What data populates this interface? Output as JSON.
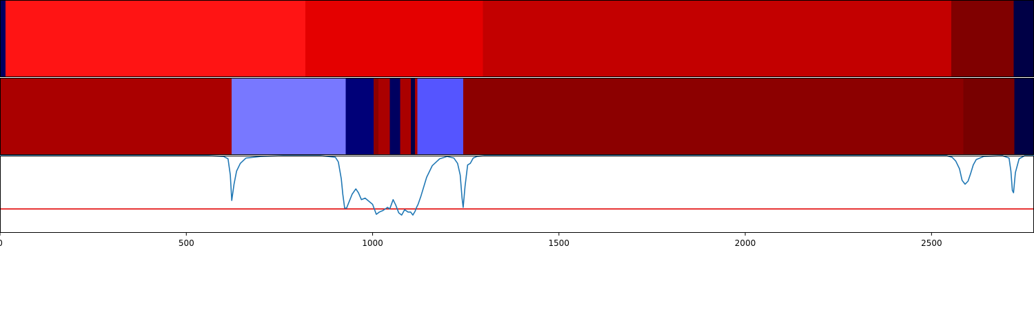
{
  "chart_data": {
    "type": "heatmap",
    "xlim": [
      0,
      2775
    ],
    "x_ticks": [
      {
        "value": 0,
        "label": "0"
      },
      {
        "value": 500,
        "label": "500"
      },
      {
        "value": 1000,
        "label": "1000"
      },
      {
        "value": 1500,
        "label": "1500"
      },
      {
        "value": 2000,
        "label": "2000"
      },
      {
        "value": 2500,
        "label": "2500"
      }
    ],
    "tracks": [
      {
        "name": "",
        "segments": [
          {
            "start": 0,
            "end": 15,
            "color": "#000060"
          },
          {
            "start": 15,
            "end": 820,
            "color": "#ff1414"
          },
          {
            "start": 820,
            "end": 1296,
            "color": "#e40000"
          },
          {
            "start": 1296,
            "end": 2553,
            "color": "#c30000"
          },
          {
            "start": 2553,
            "end": 2720,
            "color": "#800000"
          },
          {
            "start": 2720,
            "end": 2775,
            "color": "#000046"
          }
        ]
      },
      {
        "name": "",
        "segments": [
          {
            "start": 0,
            "end": 622,
            "color": "#aa0000"
          },
          {
            "start": 622,
            "end": 928,
            "color": "#7878ff"
          },
          {
            "start": 928,
            "end": 1003,
            "color": "#000078"
          },
          {
            "start": 1003,
            "end": 1016,
            "color": "#8c0000"
          },
          {
            "start": 1016,
            "end": 1046,
            "color": "#aa0000"
          },
          {
            "start": 1046,
            "end": 1074,
            "color": "#000060"
          },
          {
            "start": 1074,
            "end": 1103,
            "color": "#aa0000"
          },
          {
            "start": 1103,
            "end": 1114,
            "color": "#000046"
          },
          {
            "start": 1114,
            "end": 1120,
            "color": "#aa0000"
          },
          {
            "start": 1120,
            "end": 1243,
            "color": "#5555ff"
          },
          {
            "start": 1243,
            "end": 2585,
            "color": "#8c0000"
          },
          {
            "start": 2585,
            "end": 2722,
            "color": "#780000"
          },
          {
            "start": 2722,
            "end": 2775,
            "color": "#000046"
          }
        ]
      }
    ],
    "line_panel": {
      "ylim": [
        0,
        1
      ],
      "threshold": 0.31,
      "threshold_color": "#e00000",
      "line_color": "#1f77b4",
      "x": [
        0,
        560,
        600,
        612,
        618,
        622,
        628,
        635,
        645,
        660,
        700,
        760,
        820,
        860,
        900,
        908,
        916,
        920,
        925,
        930,
        945,
        955,
        962,
        970,
        980,
        1000,
        1010,
        1018,
        1028,
        1040,
        1046,
        1055,
        1062,
        1070,
        1078,
        1086,
        1095,
        1102,
        1108,
        1114,
        1118,
        1122,
        1130,
        1145,
        1160,
        1180,
        1200,
        1218,
        1228,
        1235,
        1240,
        1243,
        1248,
        1255,
        1262,
        1270,
        1280,
        1300,
        1400,
        1800,
        2300,
        2540,
        2555,
        2565,
        2575,
        2582,
        2590,
        2598,
        2605,
        2612,
        2620,
        2640,
        2690,
        2708,
        2713,
        2717,
        2720,
        2725,
        2735,
        2750,
        2775
      ],
      "y": [
        1.0,
        1.0,
        0.99,
        0.96,
        0.75,
        0.42,
        0.63,
        0.8,
        0.9,
        0.97,
        0.99,
        1.0,
        1.0,
        1.0,
        0.98,
        0.92,
        0.7,
        0.5,
        0.32,
        0.32,
        0.5,
        0.57,
        0.52,
        0.43,
        0.45,
        0.37,
        0.24,
        0.27,
        0.29,
        0.33,
        0.31,
        0.43,
        0.36,
        0.26,
        0.23,
        0.3,
        0.27,
        0.27,
        0.23,
        0.28,
        0.33,
        0.37,
        0.48,
        0.72,
        0.87,
        0.96,
        0.99,
        0.97,
        0.9,
        0.75,
        0.45,
        0.33,
        0.6,
        0.88,
        0.9,
        0.97,
        0.99,
        1.0,
        1.0,
        1.0,
        1.0,
        1.0,
        0.98,
        0.93,
        0.83,
        0.68,
        0.63,
        0.67,
        0.77,
        0.88,
        0.95,
        0.99,
        1.0,
        0.97,
        0.8,
        0.55,
        0.52,
        0.78,
        0.96,
        1.0,
        1.0
      ]
    }
  }
}
